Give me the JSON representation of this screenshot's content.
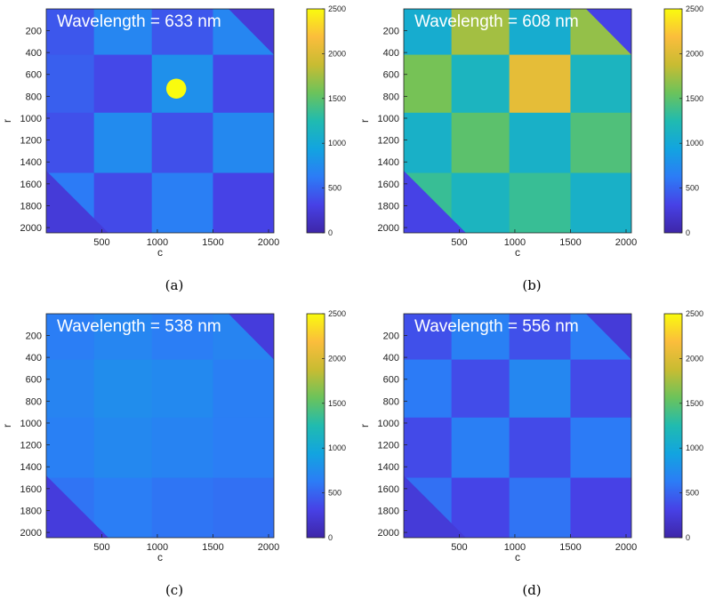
{
  "colors": {
    "colormap": [
      "#3e26a8",
      "#4741e6",
      "#2c7cf6",
      "#12a4e0",
      "#20bbb0",
      "#6bc35b",
      "#c8bc32",
      "#fbbd3c",
      "#f9fb0e"
    ],
    "frame": "#222222"
  },
  "chart_data": [
    {
      "type": "heatmap",
      "caption": "(a)",
      "annotation": "Wavelength = 633 nm",
      "xlabel": "c",
      "ylabel": "r",
      "xlim": [
        1,
        2048
      ],
      "ylim": [
        2048,
        1
      ],
      "x_ticks": [
        "500",
        "1000",
        "1500",
        "2000"
      ],
      "y_ticks": [
        "200",
        "400",
        "600",
        "800",
        "1000",
        "1200",
        "1400",
        "1600",
        "1800",
        "2000"
      ],
      "colorbar": {
        "min": 0,
        "max": 2500,
        "ticks": [
          "0",
          "500",
          "1000",
          "1500",
          "2000",
          "2500"
        ]
      },
      "col_edges": [
        1,
        430,
        950,
        1500,
        2048
      ],
      "row_edges": [
        1,
        420,
        950,
        1500,
        2048
      ],
      "cell_values": [
        [
          430,
          700,
          430,
          700
        ],
        [
          470,
          350,
          780,
          350
        ],
        [
          390,
          740,
          390,
          720
        ],
        [
          620,
          360,
          650,
          320
        ]
      ],
      "hotspot": {
        "c": 1170,
        "r": 730,
        "radius": 90,
        "value": 2500
      },
      "corner_value": 240
    },
    {
      "type": "heatmap",
      "caption": "(b)",
      "annotation": "Wavelength = 608 nm",
      "xlabel": "c",
      "ylabel": "r",
      "xlim": [
        1,
        2048
      ],
      "ylim": [
        2048,
        1
      ],
      "x_ticks": [
        "500",
        "1000",
        "1500",
        "2000"
      ],
      "y_ticks": [
        "200",
        "400",
        "600",
        "800",
        "1000",
        "1200",
        "1400",
        "1600",
        "1800",
        "2000"
      ],
      "colorbar": {
        "min": 0,
        "max": 2500,
        "ticks": [
          "0",
          "500",
          "1000",
          "1500",
          "2000",
          "2500"
        ]
      },
      "col_edges": [
        1,
        430,
        950,
        1500,
        2048
      ],
      "row_edges": [
        1,
        420,
        950,
        1500,
        2048
      ],
      "cell_values": [
        [
          1050,
          1750,
          1050,
          1700
        ],
        [
          1600,
          1150,
          2050,
          1150
        ],
        [
          1100,
          1500,
          1100,
          1450
        ],
        [
          1350,
          1150,
          1350,
          1100
        ]
      ],
      "corner_value": 320
    },
    {
      "type": "heatmap",
      "caption": "(c)",
      "annotation": "Wavelength = 538 nm",
      "xlabel": "c",
      "ylabel": "r",
      "xlim": [
        1,
        2048
      ],
      "ylim": [
        2048,
        1
      ],
      "x_ticks": [
        "500",
        "1000",
        "1500",
        "2000"
      ],
      "y_ticks": [
        "200",
        "400",
        "600",
        "800",
        "1000",
        "1200",
        "1400",
        "1600",
        "1800",
        "2000"
      ],
      "colorbar": {
        "min": 0,
        "max": 2500,
        "ticks": [
          "0",
          "500",
          "1000",
          "1500",
          "2000",
          "2500"
        ]
      },
      "col_edges": [
        1,
        430,
        950,
        1500,
        2048
      ],
      "row_edges": [
        1,
        420,
        950,
        1500,
        2048
      ],
      "cell_values": [
        [
          640,
          700,
          640,
          690
        ],
        [
          690,
          760,
          730,
          650
        ],
        [
          660,
          720,
          680,
          640
        ],
        [
          580,
          640,
          590,
          560
        ]
      ],
      "corner_value": 260
    },
    {
      "type": "heatmap",
      "caption": "(d)",
      "annotation": "Wavelength = 556 nm",
      "xlabel": "c",
      "ylabel": "r",
      "xlim": [
        1,
        2048
      ],
      "ylim": [
        2048,
        1
      ],
      "x_ticks": [
        "500",
        "1000",
        "1500",
        "2000"
      ],
      "y_ticks": [
        "200",
        "400",
        "600",
        "800",
        "1000",
        "1200",
        "1400",
        "1600",
        "1800",
        "2000"
      ],
      "colorbar": {
        "min": 0,
        "max": 2500,
        "ticks": [
          "0",
          "500",
          "1000",
          "1500",
          "2000",
          "2500"
        ]
      },
      "col_edges": [
        1,
        430,
        950,
        1500,
        2048
      ],
      "row_edges": [
        1,
        420,
        950,
        1500,
        2048
      ],
      "cell_values": [
        [
          390,
          660,
          390,
          640
        ],
        [
          620,
          370,
          710,
          360
        ],
        [
          360,
          650,
          360,
          620
        ],
        [
          560,
          330,
          580,
          310
        ]
      ],
      "corner_value": 240
    }
  ]
}
